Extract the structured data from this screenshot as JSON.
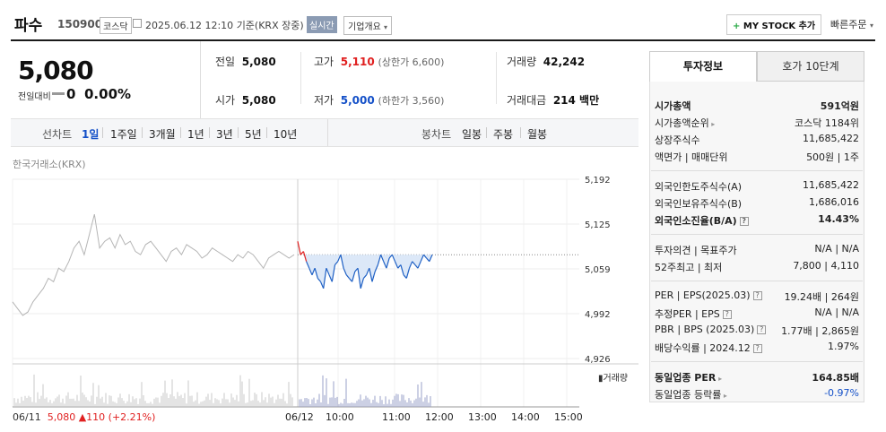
{
  "header": {
    "stock_name": "파수",
    "stock_code": "150900",
    "market": "코스닥",
    "datetime": "2025.06.12 12:10",
    "basis": "기준(KRX 장중)",
    "realtime": "실시간",
    "company_overview": "기업개요",
    "mystock_plus": "+",
    "mystock": "MY STOCK 추가",
    "quick_order": "빠른주문"
  },
  "price": {
    "current": "5,080",
    "change_label": "전일대비",
    "change": "0",
    "change_pct": "0.00%"
  },
  "summary": {
    "prev_label": "전일",
    "prev": "5,080",
    "open_label": "시가",
    "open": "5,080",
    "high_label": "고가",
    "high": "5,110",
    "upper_limit": "(상한가 6,600)",
    "low_label": "저가",
    "low": "5,000",
    "lower_limit": "(하한가 3,560)",
    "volume_label": "거래량",
    "volume": "42,242",
    "amount_label": "거래대금",
    "amount": "214 백만"
  },
  "periods": {
    "line_label": "선차트",
    "line_items": [
      "1일",
      "1주일",
      "3개월",
      "1년",
      "3년",
      "5년",
      "10년"
    ],
    "selected": "1일",
    "candle_label": "봉차트",
    "candle_items": [
      "일봉",
      "주봉",
      "월봉"
    ]
  },
  "chart_data": {
    "type": "line",
    "source": "한국거래소(KRX)",
    "y_ticks": [
      "5,192",
      "5,125",
      "5,059",
      "4,992",
      "4,926"
    ],
    "ylim": [
      4926,
      5192
    ],
    "prev_close": 5080,
    "x_ticks": [
      "06/11",
      "06/12",
      "10:00",
      "11:00",
      "12:00",
      "13:00",
      "14:00",
      "15:00"
    ],
    "volume_label": "거래량",
    "footer_date": "06/11",
    "footer_price": "5,080",
    "footer_change": "▲110",
    "footer_pct": "(+2.21%)",
    "prev_day_series": [
      5010,
      5000,
      4990,
      4995,
      5010,
      5020,
      5030,
      5045,
      5040,
      5060,
      5055,
      5070,
      5090,
      5100,
      5080,
      5110,
      5140,
      5090,
      5100,
      5105,
      5090,
      5110,
      5095,
      5100,
      5085,
      5080,
      5095,
      5100,
      5090,
      5080,
      5070,
      5085,
      5090,
      5080,
      5095,
      5090,
      5085,
      5075,
      5080,
      5090,
      5085,
      5080,
      5075,
      5070,
      5080,
      5075,
      5085,
      5080,
      5070,
      5060,
      5075,
      5080,
      5085,
      5080,
      5075,
      5080
    ],
    "today_series": [
      5100,
      5080,
      5085,
      5070,
      5060,
      5050,
      5060,
      5045,
      5040,
      5030,
      5060,
      5050,
      5040,
      5065,
      5070,
      5080,
      5060,
      5050,
      5045,
      5040,
      5055,
      5060,
      5030,
      5045,
      5050,
      5060,
      5040,
      5055,
      5065,
      5080,
      5070,
      5060,
      5075,
      5080,
      5070,
      5060,
      5065,
      5050,
      5045,
      5060,
      5070,
      5065,
      5060,
      5070,
      5080,
      5075,
      5070,
      5080
    ]
  },
  "right_panel": {
    "tab_invest": "투자정보",
    "tab_quote": "호가 10단계",
    "market_cap_label": "시가총액",
    "market_cap": "591억원",
    "market_cap_rank_label": "시가총액순위",
    "market_cap_rank": "코스닥 1184위",
    "listed_shares_label": "상장주식수",
    "listed_shares": "11,685,422",
    "par_label": "액면가 | 매매단위",
    "par": "500원 | 1주",
    "foreign_limit_label": "외국인한도주식수(A)",
    "foreign_limit": "11,685,422",
    "foreign_hold_label": "외국인보유주식수(B)",
    "foreign_hold": "1,686,016",
    "foreign_ratio_label": "외국인소진율(B/A)",
    "foreign_ratio": "14.43%",
    "opinion_label": "투자의견 | 목표주가",
    "opinion": "N/A | N/A",
    "high52_label": "52주최고 | 최저",
    "high52": "7,800 | 4,110",
    "per_label": "PER | EPS(2025.03)",
    "per": "19.24배 | 264원",
    "est_per_label": "추정PER | EPS",
    "est_per": "N/A | N/A",
    "pbr_label": "PBR | BPS (2025.03)",
    "pbr": "1.77배 | 2,865원",
    "div_label": "배당수익률 | 2024.12",
    "div": "1.97%",
    "sector_per_label": "동일업종 PER",
    "sector_per": "164.85배",
    "sector_rate_label": "동일업종 등락률",
    "sector_rate": "-0.97%"
  }
}
